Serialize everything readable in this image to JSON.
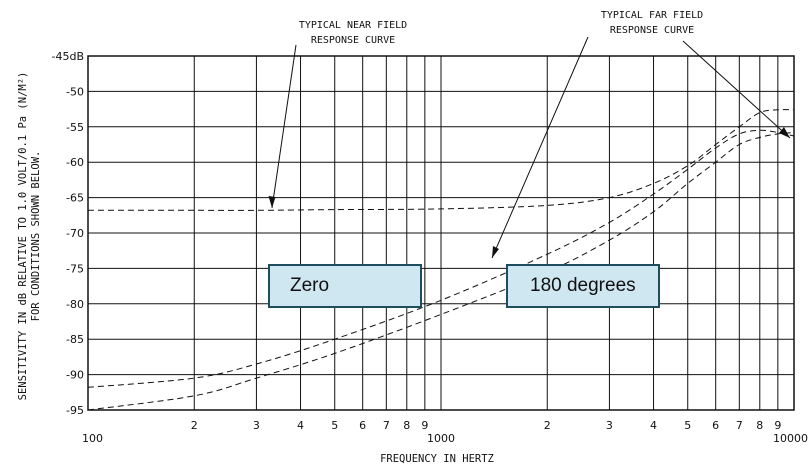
{
  "chart_data": {
    "type": "line",
    "title": "",
    "xlabel": "FREQUENCY IN HERTZ",
    "ylabel_lines": [
      "SENSITIVITY IN dB RELATIVE TO 1.0 VOLT/0.1 Pa (N/M²)",
      "FOR CONDITIONS SHOWN BELOW."
    ],
    "x_scale": "log",
    "xlim": [
      100,
      10000
    ],
    "ylim": [
      -95,
      -45
    ],
    "grid": true,
    "x_tick_labels": [
      {
        "value": 100,
        "label": "100"
      },
      {
        "value": 200,
        "label": "2"
      },
      {
        "value": 300,
        "label": "3"
      },
      {
        "value": 400,
        "label": "4"
      },
      {
        "value": 500,
        "label": "5"
      },
      {
        "value": 600,
        "label": "6"
      },
      {
        "value": 700,
        "label": "7"
      },
      {
        "value": 800,
        "label": "8"
      },
      {
        "value": 900,
        "label": "9"
      },
      {
        "value": 1000,
        "label": "1000"
      },
      {
        "value": 2000,
        "label": "2"
      },
      {
        "value": 3000,
        "label": "3"
      },
      {
        "value": 4000,
        "label": "4"
      },
      {
        "value": 5000,
        "label": "5"
      },
      {
        "value": 6000,
        "label": "6"
      },
      {
        "value": 7000,
        "label": "7"
      },
      {
        "value": 8000,
        "label": "8"
      },
      {
        "value": 9000,
        "label": "9"
      },
      {
        "value": 10000,
        "label": "10000"
      }
    ],
    "y_tick_labels": [
      {
        "value": -45,
        "label": "-45dB"
      },
      {
        "value": -50,
        "label": "-50"
      },
      {
        "value": -55,
        "label": "-55"
      },
      {
        "value": -60,
        "label": "-60"
      },
      {
        "value": -65,
        "label": "-65"
      },
      {
        "value": -70,
        "label": "-70"
      },
      {
        "value": -75,
        "label": "-75"
      },
      {
        "value": -80,
        "label": "-80"
      },
      {
        "value": -85,
        "label": "-85"
      },
      {
        "value": -90,
        "label": "-90"
      },
      {
        "value": -95,
        "label": "-95"
      }
    ],
    "series": [
      {
        "x": [
          100,
          200,
          300,
          500,
          1000,
          2000,
          3000,
          4000,
          5000,
          6000,
          7000,
          8000,
          9000,
          10000
        ],
        "values": [
          -66.8,
          -66.8,
          -66.8,
          -66.7,
          -66.6,
          -66.1,
          -65.0,
          -63.0,
          -60.5,
          -57.5,
          -55.0,
          -53.0,
          -52.6,
          -52.6
        ]
      },
      {
        "x": [
          100,
          200,
          300,
          500,
          1000,
          2000,
          3000,
          4000,
          5000,
          6000,
          7000,
          8000,
          9000,
          10000
        ],
        "values": [
          -91.8,
          -90.5,
          -88.5,
          -85.0,
          -79.5,
          -73.0,
          -68.5,
          -64.5,
          -61.0,
          -58.0,
          -56.0,
          -55.5,
          -55.8,
          -56.3
        ]
      },
      {
        "x": [
          100,
          200,
          300,
          500,
          1000,
          2000,
          3000,
          4000,
          5000,
          6000,
          7000,
          8000,
          9000,
          10000
        ],
        "values": [
          -95.0,
          -93.0,
          -90.5,
          -87.0,
          -81.5,
          -75.5,
          -71.0,
          -67.0,
          -63.0,
          -60.0,
          -57.5,
          -56.5,
          -56.0,
          -55.8
        ]
      }
    ],
    "annotations": {
      "near_field": [
        "TYPICAL NEAR FIELD",
        "RESPONSE CURVE"
      ],
      "far_field": [
        "TYPICAL FAR FIELD",
        "RESPONSE CURVE"
      ]
    },
    "condition_labels": [
      "Zero",
      "180 degrees"
    ],
    "colors": {
      "line": "#111111",
      "grid": "#111111",
      "box_fill": "#cfe7f1",
      "box_border": "#1e4d5f"
    }
  }
}
